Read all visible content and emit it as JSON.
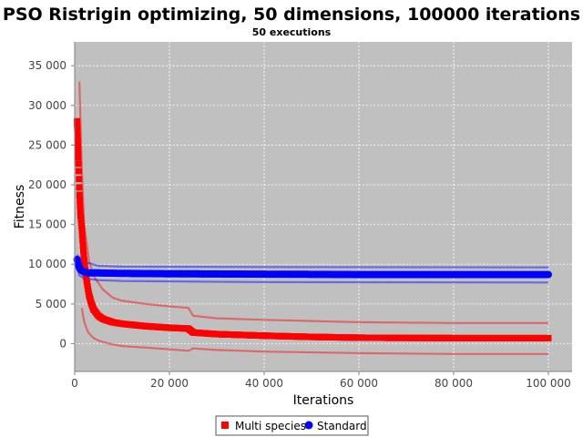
{
  "chart_data": {
    "type": "scatter",
    "title": "PSO Ristrigin optimizing, 50 dimensions, 100000 iterations",
    "subtitle": "50 executions",
    "xlabel": "Iterations",
    "ylabel": "Fitness",
    "xlim": [
      0,
      105000
    ],
    "ylim": [
      -3500,
      38000
    ],
    "x_ticks": [
      0,
      20000,
      40000,
      60000,
      80000,
      100000
    ],
    "x_tick_labels": [
      "0",
      "20 000",
      "40 000",
      "60 000",
      "80 000",
      "100 000"
    ],
    "y_ticks": [
      0,
      5000,
      10000,
      15000,
      20000,
      25000,
      30000,
      35000
    ],
    "y_tick_labels": [
      "0",
      "5 000",
      "10 000",
      "15 000",
      "20 000",
      "25 000",
      "30 000",
      "35 000"
    ],
    "grid": true,
    "legend_position": "bottom-center",
    "background_color": "#c0c0c0",
    "series": [
      {
        "name": "Multi species",
        "color": "#ff0000",
        "marker": "square",
        "mean": {
          "x": [
            500,
            800,
            1000,
            1200,
            1500,
            1800,
            2000,
            2500,
            3000,
            3500,
            4000,
            5000,
            6000,
            8000,
            10000,
            15000,
            20000,
            24000,
            25000,
            30000,
            40000,
            50000,
            60000,
            80000,
            100000
          ],
          "y": [
            28000,
            23000,
            19000,
            16500,
            14500,
            12000,
            10500,
            8000,
            6200,
            5100,
            4300,
            3500,
            3100,
            2700,
            2500,
            2200,
            2000,
            1900,
            1400,
            1200,
            1000,
            850,
            750,
            700,
            700
          ]
        },
        "upper": {
          "x": [
            1000,
            1500,
            2000,
            3000,
            4000,
            6000,
            8000,
            10000,
            15000,
            20000,
            24000,
            25000,
            30000,
            40000,
            60000,
            80000,
            100000
          ],
          "y": [
            33000,
            22000,
            15000,
            10500,
            8500,
            6800,
            5800,
            5400,
            5000,
            4700,
            4500,
            3500,
            3200,
            3000,
            2700,
            2600,
            2600
          ]
        },
        "lower": {
          "x": [
            1500,
            2000,
            2500,
            3000,
            4000,
            5000,
            6000,
            8000,
            10000,
            15000,
            20000,
            24000,
            25000,
            30000,
            40000,
            60000,
            80000,
            100000
          ],
          "y": [
            4500,
            2800,
            1900,
            1300,
            700,
            400,
            200,
            -100,
            -300,
            -500,
            -700,
            -900,
            -600,
            -800,
            -1000,
            -1200,
            -1300,
            -1300
          ]
        }
      },
      {
        "name": "Standard",
        "color": "#0000ff",
        "marker": "circle",
        "mean": {
          "x": [
            500,
            800,
            1000,
            1500,
            2000,
            3000,
            5000,
            10000,
            20000,
            40000,
            60000,
            80000,
            100000
          ],
          "y": [
            10600,
            10000,
            9500,
            9200,
            9000,
            8900,
            8900,
            8850,
            8800,
            8750,
            8700,
            8700,
            8700
          ]
        },
        "upper": {
          "x": [
            500,
            1000,
            2000,
            5000,
            10000,
            40000,
            100000
          ],
          "y": [
            11200,
            10800,
            10300,
            9800,
            9700,
            9650,
            9600
          ]
        },
        "lower": {
          "x": [
            500,
            1000,
            2000,
            5000,
            10000,
            40000,
            100000
          ],
          "y": [
            9500,
            8600,
            8200,
            8000,
            7900,
            7750,
            7700
          ]
        }
      }
    ]
  }
}
